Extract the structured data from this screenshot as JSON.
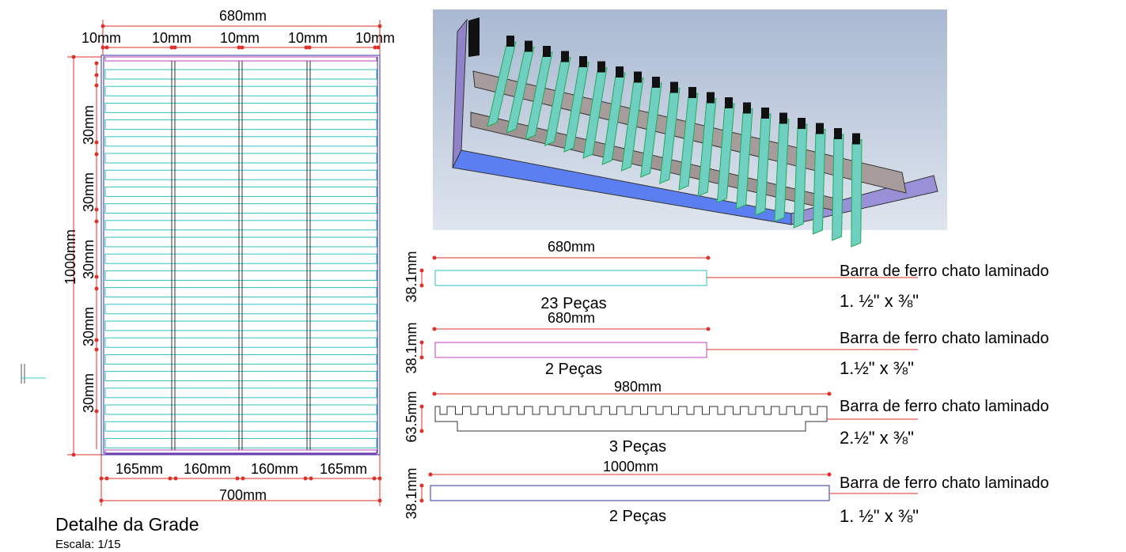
{
  "grid_detail": {
    "width": "680mm",
    "spacings": [
      "10mm",
      "10mm",
      "10mm",
      "10mm",
      "10mm"
    ],
    "height": "1000mm",
    "row_spacings": [
      "30mm",
      "30mm",
      "30mm",
      "30mm",
      "30mm"
    ],
    "bottom_spacings": [
      "165mm",
      "160mm",
      "160mm",
      "165mm"
    ],
    "total_width": "700mm",
    "title": "Detalhe da Grade",
    "scale": "Escala: 1/15"
  },
  "parts": [
    {
      "length": "680mm",
      "height": "38.1mm",
      "quantity": "23 Peças",
      "description": "Barra de ferro chato laminado",
      "spec": "1. ½\" x ⅜\""
    },
    {
      "length": "680mm",
      "height": "38.1mm",
      "quantity": "2 Peças",
      "description": "Barra de ferro chato laminado",
      "spec": "1.½\" x ⅜\""
    },
    {
      "length": "980mm",
      "height": "63.5mm",
      "quantity": "3 Peças",
      "description": "Barra de ferro chato laminado",
      "spec": "2.½\" x ⅜\""
    },
    {
      "length": "1000mm",
      "height": "38.1mm",
      "quantity": "2 Peças",
      "description": "Barra de ferro chato laminado",
      "spec": "1. ½\" x ⅜\""
    }
  ]
}
